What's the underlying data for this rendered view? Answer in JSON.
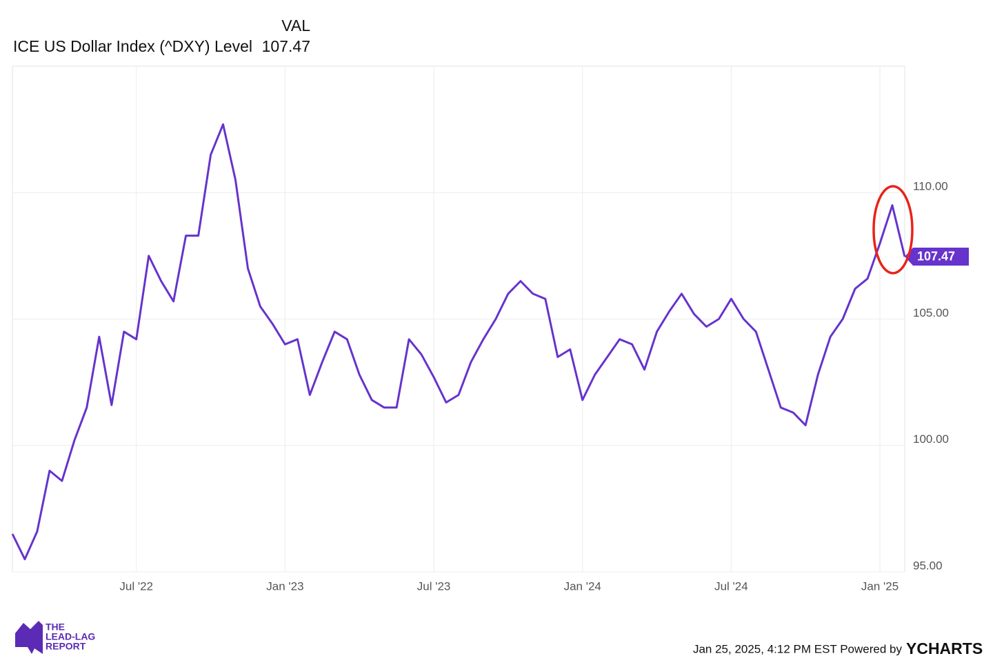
{
  "chart_data": {
    "type": "line",
    "value_header": "VAL",
    "categories": [
      null,
      null,
      null,
      null,
      null,
      null,
      null,
      null,
      null,
      null,
      "Jul '22",
      null,
      null,
      null,
      null,
      null,
      null,
      null,
      null,
      null,
      null,
      null,
      "Jan '23",
      null,
      null,
      null,
      null,
      null,
      null,
      null,
      null,
      null,
      null,
      null,
      "Jul '23",
      null,
      null,
      null,
      null,
      null,
      null,
      null,
      null,
      null,
      null,
      null,
      "Jan '24",
      null,
      null,
      null,
      null,
      null,
      null,
      null,
      null,
      null,
      null,
      null,
      "Jul '24",
      null,
      null,
      null,
      null,
      null,
      null,
      null,
      null,
      null,
      null,
      null,
      "Jan '25",
      null,
      null
    ],
    "series": [
      {
        "name": "ICE US Dollar Index (^DXY) Level",
        "color": "#6633cc",
        "values": [
          96.5,
          95.5,
          96.6,
          99.0,
          98.6,
          100.2,
          101.5,
          104.3,
          101.6,
          104.5,
          104.2,
          107.5,
          106.5,
          105.7,
          108.3,
          108.3,
          111.5,
          112.7,
          110.5,
          107.0,
          105.5,
          104.8,
          104.0,
          104.2,
          102.0,
          103.3,
          104.5,
          104.2,
          102.8,
          101.8,
          101.5,
          101.5,
          104.2,
          103.6,
          102.7,
          101.7,
          102.0,
          103.3,
          104.2,
          105.0,
          106.0,
          106.5,
          106.0,
          105.8,
          103.5,
          103.8,
          101.8,
          102.8,
          103.5,
          104.2,
          104.0,
          103.0,
          104.5,
          105.3,
          106.0,
          105.2,
          104.7,
          105.0,
          105.8,
          105.0,
          104.5,
          103.0,
          101.5,
          101.3,
          100.8,
          102.8,
          104.3,
          105.0,
          106.2,
          106.6,
          108.0,
          109.5,
          107.47
        ]
      }
    ],
    "ylim": [
      95,
      115
    ],
    "yticks": [
      {
        "value": 95,
        "label": "95.00"
      },
      {
        "value": 100,
        "label": "100.00"
      },
      {
        "value": 105,
        "label": "105.00"
      },
      {
        "value": 110,
        "label": "110.00"
      }
    ],
    "grid": true,
    "timestamp": "Jan 25, 2025, 4:12 PM EST Powered by",
    "brand": "YCHARTS",
    "logo": [
      "THE",
      "LEAD-LAG",
      "REPORT"
    ]
  }
}
